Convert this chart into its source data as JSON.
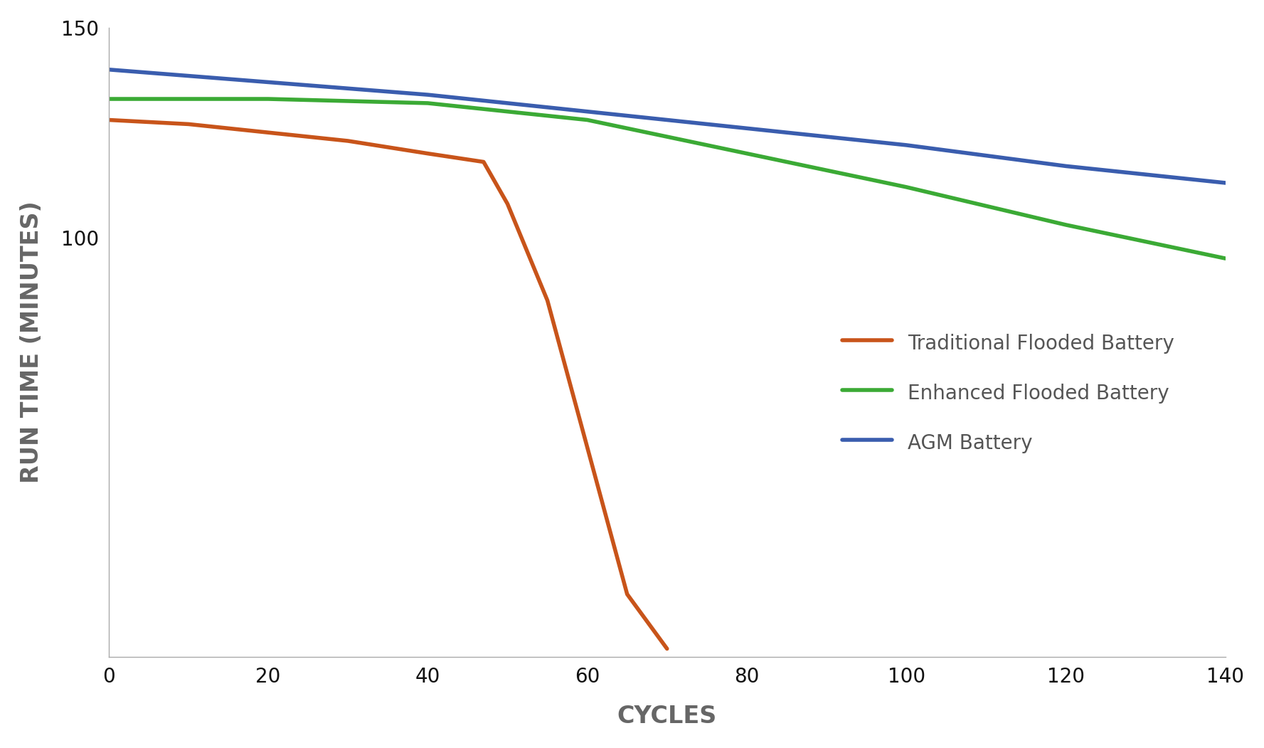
{
  "series": [
    {
      "label": "Traditional Flooded Battery",
      "color": "#C8541A",
      "x": [
        0,
        10,
        20,
        30,
        40,
        47,
        50,
        55,
        60,
        65,
        70
      ],
      "y": [
        128,
        127,
        125,
        123,
        120,
        118,
        108,
        85,
        50,
        15,
        2
      ]
    },
    {
      "label": "Enhanced Flooded Battery",
      "color": "#3BAA35",
      "x": [
        0,
        20,
        40,
        60,
        80,
        100,
        120,
        140
      ],
      "y": [
        133,
        133,
        132,
        128,
        120,
        112,
        103,
        95
      ]
    },
    {
      "label": "AGM Battery",
      "color": "#3A5DAE",
      "x": [
        0,
        20,
        40,
        60,
        80,
        100,
        120,
        140
      ],
      "y": [
        140,
        137,
        134,
        130,
        126,
        122,
        117,
        113
      ]
    }
  ],
  "xlabel": "CYCLES",
  "ylabel": "RUN TIME (MINUTES)",
  "xlim": [
    0,
    140
  ],
  "ylim": [
    0,
    150
  ],
  "xticks": [
    0,
    20,
    40,
    60,
    80,
    100,
    120,
    140
  ],
  "yticks": [
    100,
    150
  ],
  "background_color": "#ffffff",
  "spine_color": "#aaaaaa",
  "tick_label_color": "#111111",
  "axis_label_color": "#666666",
  "line_width": 4.0,
  "legend_fontsize": 20,
  "axis_label_fontsize": 24,
  "tick_fontsize": 20
}
